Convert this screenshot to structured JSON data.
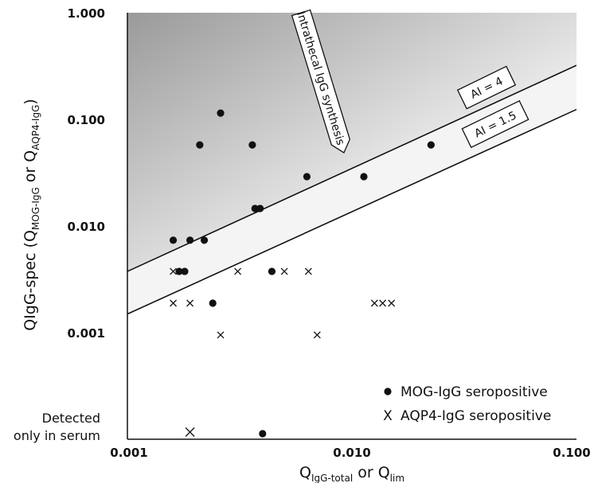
{
  "chart_data": {
    "type": "scatter",
    "x_scale": "log",
    "y_scale": "log",
    "xlim": [
      0.001,
      0.1
    ],
    "ylim": [
      0.001,
      1.0
    ],
    "x_ticks": [
      "0.001",
      "0.010",
      "0.100"
    ],
    "y_ticks": [
      "0.001",
      "0.010",
      "0.100",
      "1.000"
    ],
    "xlabel": {
      "base1": "Q",
      "sub1": "IgG-total",
      "mid": " or ",
      "base2": "Q",
      "sub2": "lim"
    },
    "ylabel": {
      "pre": "QIgG-spec (Q",
      "sub1": "MOG-IgG",
      "mid": " or Q",
      "sub2": "AQP4-IgG",
      "post": ")"
    },
    "detected_only_in_serum_label": [
      "Detected",
      "only in serum"
    ],
    "annotations": {
      "intrathecal": "Intrathecal IgG synthesis",
      "ai4": "AI = 4",
      "ai15": "AI = 1.5"
    },
    "reference_lines": [
      {
        "name": "AI = 4",
        "points": [
          [
            0.001,
            0.0038
          ],
          [
            0.1,
            0.34
          ]
        ]
      },
      {
        "name": "AI = 1.5",
        "points": [
          [
            0.001,
            0.0015
          ],
          [
            0.1,
            0.13
          ]
        ]
      }
    ],
    "series": [
      {
        "name": "MOG-IgG seropositive",
        "marker": "dot",
        "points": [
          [
            0.0026,
            0.12
          ],
          [
            0.0021,
            0.06
          ],
          [
            0.0036,
            0.06
          ],
          [
            0.0063,
            0.03
          ],
          [
            0.0113,
            0.03
          ],
          [
            0.0225,
            0.06
          ],
          [
            0.0037,
            0.015
          ],
          [
            0.0039,
            0.015
          ],
          [
            0.0016,
            0.0075
          ],
          [
            0.0019,
            0.0075
          ],
          [
            0.0022,
            0.0075
          ],
          [
            0.0017,
            0.0038
          ],
          [
            0.0018,
            0.0038
          ],
          [
            0.0044,
            0.0038
          ],
          [
            0.0024,
            0.0019
          ]
        ],
        "serum_only_x": [
          0.004
        ]
      },
      {
        "name": "AQP4-IgG seropositive",
        "marker": "x",
        "points": [
          [
            0.0016,
            0.0038
          ],
          [
            0.0031,
            0.0038
          ],
          [
            0.005,
            0.0038
          ],
          [
            0.0064,
            0.0038
          ],
          [
            0.0016,
            0.0019
          ],
          [
            0.0019,
            0.0019
          ],
          [
            0.0126,
            0.0019
          ],
          [
            0.0137,
            0.0019
          ],
          [
            0.015,
            0.0019
          ],
          [
            0.0026,
            0.00095
          ],
          [
            0.007,
            0.00095
          ]
        ],
        "serum_only_x": [
          0.0019
        ]
      }
    ],
    "legend_placement": "bottom-right",
    "grid": false,
    "background": "gray gradient above AI = 4 line, light gray band between AI lines, white below"
  },
  "colors": {
    "ink": "#111111",
    "shade_dark": "#9a9a9a",
    "shade_light": "#ffffff",
    "band": "#f4f4f4"
  }
}
